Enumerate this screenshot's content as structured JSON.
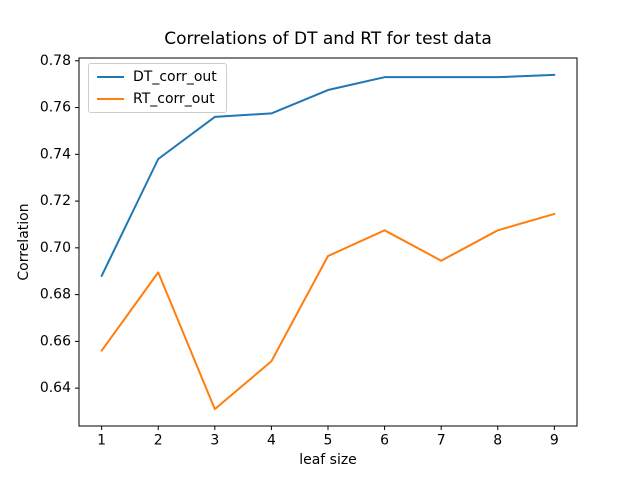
{
  "chart_data": {
    "type": "line",
    "title": "Correlations of DT and RT for test data",
    "xlabel": "leaf size",
    "ylabel": "Correlation",
    "x": [
      1,
      2,
      3,
      4,
      5,
      6,
      7,
      8,
      9
    ],
    "series": [
      {
        "name": "DT_corr_out",
        "color": "#1f77b4",
        "values": [
          0.688,
          0.738,
          0.756,
          0.7575,
          0.7675,
          0.773,
          0.773,
          0.773,
          0.774
        ]
      },
      {
        "name": "RT_corr_out",
        "color": "#ff7f0e",
        "values": [
          0.656,
          0.6895,
          0.631,
          0.6515,
          0.6965,
          0.7075,
          0.6945,
          0.7075,
          0.7145
        ]
      }
    ],
    "xlim": [
      0.6,
      9.4
    ],
    "ylim": [
      0.6238,
      0.7812
    ],
    "xticks": [
      1,
      2,
      3,
      4,
      5,
      6,
      7,
      8,
      9
    ],
    "xticklabels": [
      "1",
      "2",
      "3",
      "4",
      "5",
      "6",
      "7",
      "8",
      "9"
    ],
    "yticks": [
      0.64,
      0.66,
      0.68,
      0.7,
      0.72,
      0.74,
      0.76,
      0.78
    ],
    "yticklabels": [
      "0.64",
      "0.66",
      "0.68",
      "0.70",
      "0.72",
      "0.74",
      "0.76",
      "0.78"
    ],
    "grid": false,
    "legend_position": "upper left"
  }
}
